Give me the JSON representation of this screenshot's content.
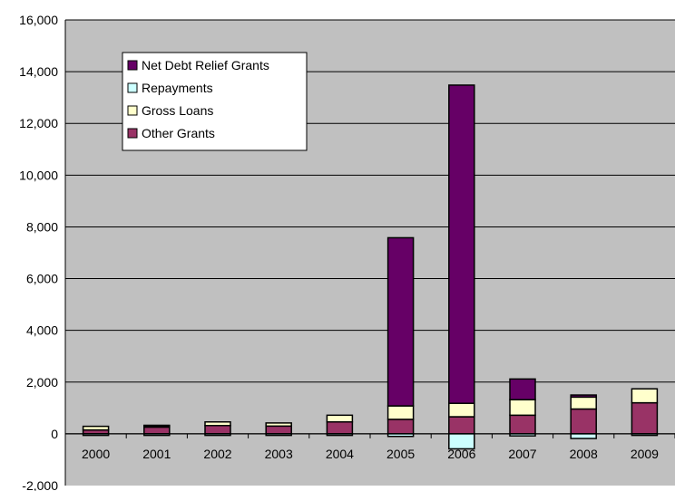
{
  "chart_data": {
    "type": "bar",
    "stacked": true,
    "categories": [
      "2000",
      "2001",
      "2002",
      "2003",
      "2004",
      "2005",
      "2006",
      "2007",
      "2008",
      "2009"
    ],
    "series": [
      {
        "name": "Other Grants",
        "color": "#993366",
        "values": [
          150,
          260,
          320,
          300,
          460,
          560,
          660,
          720,
          960,
          1200
        ]
      },
      {
        "name": "Gross Loans",
        "color": "#ffffcc",
        "values": [
          140,
          40,
          140,
          120,
          260,
          520,
          520,
          600,
          460,
          540
        ]
      },
      {
        "name": "Net Debt Relief Grants",
        "color": "#660066",
        "values": [
          0,
          30,
          0,
          0,
          0,
          6500,
          12300,
          800,
          80,
          0
        ]
      },
      {
        "name": "Repayments",
        "color": "#ccffff",
        "values": [
          -60,
          -60,
          -60,
          -60,
          -60,
          -100,
          -580,
          -80,
          -180,
          -60
        ]
      }
    ],
    "ylim": [
      -2000,
      16000
    ],
    "y_ticks": [
      {
        "value": 16000,
        "label": "16,000"
      },
      {
        "value": 14000,
        "label": "14,000"
      },
      {
        "value": 12000,
        "label": "12,000"
      },
      {
        "value": 10000,
        "label": "10,000"
      },
      {
        "value": 8000,
        "label": "8,000"
      },
      {
        "value": 6000,
        "label": "6,000"
      },
      {
        "value": 4000,
        "label": "4,000"
      },
      {
        "value": 2000,
        "label": "2,000"
      },
      {
        "value": 0,
        "label": "0"
      },
      {
        "value": -2000,
        "label": "-2,000"
      }
    ],
    "negative_label_color": "#ff0000",
    "plot_background": "#c0c0c0",
    "grid": true,
    "legend_position": "top-left",
    "legend_order": [
      "Net Debt Relief Grants",
      "Repayments",
      "Gross Loans",
      "Other Grants"
    ]
  }
}
